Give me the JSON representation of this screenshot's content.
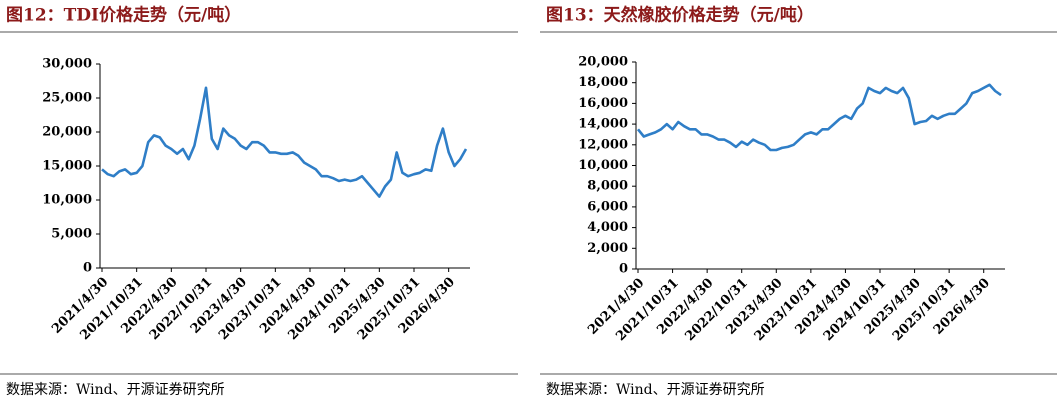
{
  "chart_data": [
    {
      "type": "line",
      "title": "图12：TDI价格走势（元/吨）",
      "source": "数据来源：Wind、开源证券研究所",
      "categories": [
        "2021/4/30",
        null,
        null,
        null,
        null,
        null,
        "2021/10/31",
        null,
        null,
        null,
        null,
        null,
        "2022/4/30",
        null,
        null,
        null,
        null,
        null,
        "2022/10/31",
        null,
        null,
        null,
        null,
        null,
        "2023/4/30",
        null,
        null,
        null,
        null,
        null,
        "2023/10/31",
        null,
        null,
        null,
        null,
        null,
        "2024/4/30",
        null,
        null,
        null,
        null,
        null,
        "2024/10/31",
        null,
        null,
        null,
        null,
        null,
        "2025/4/30",
        null,
        null,
        null,
        null,
        null,
        "2025/10/31",
        null,
        null,
        null,
        null,
        null,
        "2026/4/30",
        null,
        null,
        null
      ],
      "series": [
        {
          "name": "TDI",
          "color": "#2f7ec7",
          "values": [
            14500,
            13800,
            13500,
            14200,
            14500,
            13800,
            14000,
            15000,
            18500,
            19500,
            19200,
            18000,
            17500,
            16800,
            17500,
            16000,
            18000,
            22000,
            26500,
            19000,
            17500,
            20500,
            19500,
            19000,
            18000,
            17500,
            18500,
            18500,
            18000,
            17000,
            17000,
            16800,
            16800,
            17000,
            16500,
            15500,
            15000,
            14500,
            13500,
            13500,
            13200,
            12800,
            13000,
            12800,
            13000,
            13500,
            12500,
            11500,
            10500,
            12000,
            13000,
            17000,
            14000,
            13500,
            13800,
            14000,
            14500,
            14300,
            18000,
            20500,
            17000,
            15000,
            16000,
            17500
          ]
        }
      ],
      "ylim": [
        0,
        30000
      ],
      "yticks": [
        0,
        {
          "value": 5000,
          "label": "5,000"
        },
        {
          "value": 10000,
          "label": "10,000"
        },
        {
          "value": 15000,
          "label": "15,000"
        },
        {
          "value": 20000,
          "label": "20,000"
        },
        {
          "value": 25000,
          "label": "25,000"
        },
        {
          "value": 30000,
          "label": "30,000"
        }
      ]
    },
    {
      "type": "line",
      "title": "图13：天然橡胶价格走势（元/吨）",
      "source": "数据来源：Wind、开源证券研究所",
      "categories": [
        "2021/4/30",
        null,
        null,
        null,
        null,
        null,
        "2021/10/31",
        null,
        null,
        null,
        null,
        null,
        "2022/4/30",
        null,
        null,
        null,
        null,
        null,
        "2022/10/31",
        null,
        null,
        null,
        null,
        null,
        "2023/4/30",
        null,
        null,
        null,
        null,
        null,
        "2023/10/31",
        null,
        null,
        null,
        null,
        null,
        "2024/4/30",
        null,
        null,
        null,
        null,
        null,
        "2024/10/31",
        null,
        null,
        null,
        null,
        null,
        "2025/4/30",
        null,
        null,
        null,
        null,
        null,
        "2025/10/31",
        null,
        null,
        null,
        null,
        null,
        "2026/4/30",
        null,
        null,
        null
      ],
      "series": [
        {
          "name": "天然橡胶",
          "color": "#2f7ec7",
          "values": [
            13500,
            12800,
            13000,
            13200,
            13500,
            14000,
            13500,
            14200,
            13800,
            13500,
            13500,
            13000,
            13000,
            12800,
            12500,
            12500,
            12200,
            11800,
            12300,
            12000,
            12500,
            12200,
            12000,
            11500,
            11500,
            11700,
            11800,
            12000,
            12500,
            13000,
            13200,
            13000,
            13500,
            13500,
            14000,
            14500,
            14800,
            14500,
            15500,
            16000,
            17500,
            17200,
            17000,
            17500,
            17200,
            17000,
            17500,
            16500,
            14000,
            14200,
            14300,
            14800,
            14500,
            14800,
            15000,
            15000,
            15500,
            16000,
            17000,
            17200,
            17500,
            17800,
            17200,
            16800
          ]
        }
      ],
      "ylim": [
        0,
        20000
      ],
      "yticks": [
        0,
        {
          "value": 2000,
          "label": "2,000"
        },
        {
          "value": 4000,
          "label": "4,000"
        },
        {
          "value": 6000,
          "label": "6,000"
        },
        {
          "value": 8000,
          "label": "8,000"
        },
        {
          "value": 10000,
          "label": "10,000"
        },
        {
          "value": 12000,
          "label": "12,000"
        },
        {
          "value": 14000,
          "label": "14,000"
        },
        {
          "value": 16000,
          "label": "16,000"
        },
        {
          "value": 18000,
          "label": "18,000"
        },
        {
          "value": 20000,
          "label": "20,000"
        }
      ]
    }
  ]
}
